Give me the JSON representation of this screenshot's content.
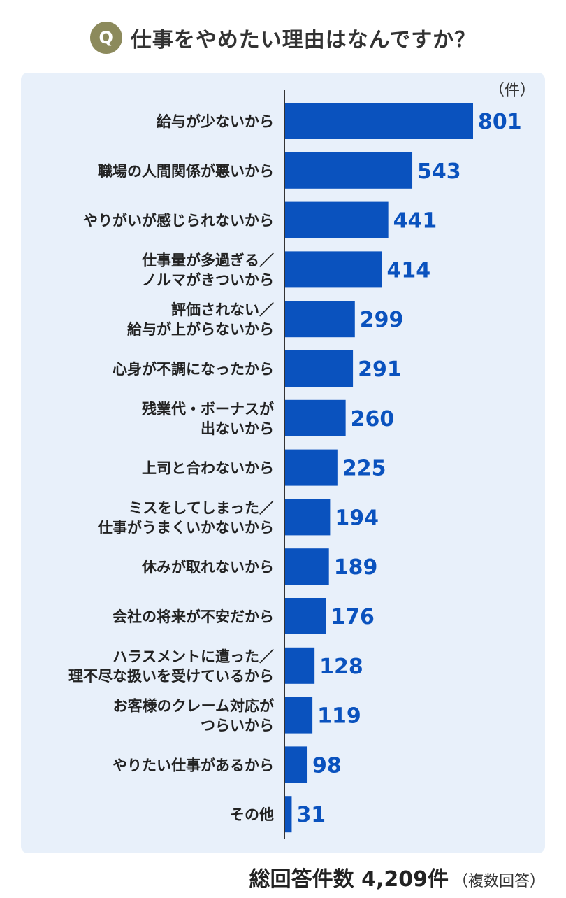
{
  "header": {
    "badge": "Q",
    "question": "仕事をやめたい理由はなんですか？"
  },
  "footer": {
    "total": "総回答件数 4,209件",
    "note": "（複数回答）"
  },
  "colors": {
    "bar": "#0a52be",
    "value_text": "#0a52be",
    "panel": "#e8f0fa",
    "badge": "#8c8a5c"
  },
  "chart_data": {
    "type": "bar",
    "orientation": "horizontal",
    "unit_label": "（件）",
    "categories": [
      [
        "給与が少ないから"
      ],
      [
        "職場の人間関係が悪いから"
      ],
      [
        "やりがいが感じられないから"
      ],
      [
        "仕事量が多過ぎる／",
        "ノルマがきついから"
      ],
      [
        "評価されない／",
        "給与が上がらないから"
      ],
      [
        "心身が不調になったから"
      ],
      [
        "残業代・ボーナスが",
        "出ないから"
      ],
      [
        "上司と合わないから"
      ],
      [
        "ミスをしてしまった／",
        "仕事がうまくいかないから"
      ],
      [
        "休みが取れないから"
      ],
      [
        "会社の将来が不安だから"
      ],
      [
        "ハラスメントに遭った／",
        "理不尽な扱いを受けているから"
      ],
      [
        "お客様のクレーム対応が",
        "つらいから"
      ],
      [
        "やりたい仕事があるから"
      ],
      [
        "その他"
      ]
    ],
    "values": [
      801,
      543,
      441,
      414,
      299,
      291,
      260,
      225,
      194,
      189,
      176,
      128,
      119,
      98,
      31
    ],
    "xlim": [
      0,
      801
    ],
    "grid": false,
    "legend": "none"
  }
}
